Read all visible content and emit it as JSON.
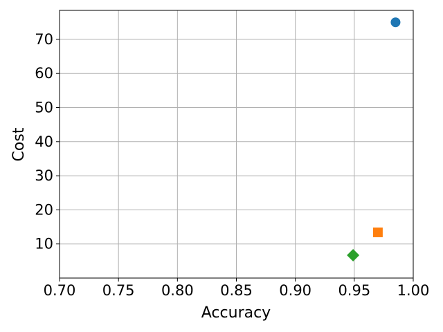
{
  "chart_data": {
    "type": "scatter",
    "title": "",
    "xlabel": "Accuracy",
    "ylabel": "Cost",
    "xlim": [
      0.7,
      1.0
    ],
    "ylim": [
      0,
      78.5
    ],
    "grid": true,
    "legend": "none",
    "x_ticks": [
      0.7,
      0.75,
      0.8,
      0.85,
      0.9,
      0.95,
      1.0
    ],
    "x_tick_labels": [
      "0.70",
      "0.75",
      "0.80",
      "0.85",
      "0.90",
      "0.95",
      "1.00"
    ],
    "y_ticks": [
      10,
      20,
      30,
      40,
      50,
      60,
      70
    ],
    "y_tick_labels": [
      "10",
      "20",
      "30",
      "40",
      "50",
      "60",
      "70"
    ],
    "points": [
      {
        "x": 0.985,
        "y": 75.0,
        "marker": "circle",
        "color": "#1f77b4"
      },
      {
        "x": 0.97,
        "y": 13.4,
        "marker": "square",
        "color": "#ff7f0e"
      },
      {
        "x": 0.949,
        "y": 6.7,
        "marker": "diamond",
        "color": "#2ca02c"
      }
    ]
  }
}
